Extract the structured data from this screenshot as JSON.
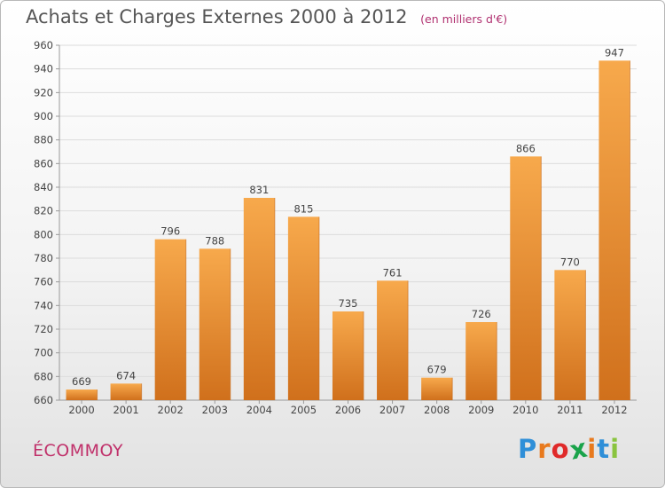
{
  "chart_data": {
    "type": "bar",
    "title": "Achats et Charges Externes 2000 à 2012",
    "subtitle": "(en milliers d'€)",
    "xlabel": "",
    "ylabel": "",
    "categories": [
      "2000",
      "2001",
      "2002",
      "2003",
      "2004",
      "2005",
      "2006",
      "2007",
      "2008",
      "2009",
      "2010",
      "2011",
      "2012"
    ],
    "values": [
      669,
      674,
      796,
      788,
      831,
      815,
      735,
      761,
      679,
      726,
      866,
      770,
      947
    ],
    "ylim": [
      660,
      960
    ],
    "yticks": [
      660,
      680,
      700,
      720,
      740,
      760,
      780,
      800,
      820,
      840,
      860,
      880,
      900,
      920,
      940,
      960
    ],
    "grid": true,
    "legend": "none",
    "bar_color_light": "#f7a94c",
    "bar_color_dark": "#d0701c"
  },
  "location": "ÉCOMMOY",
  "logo": {
    "text": "Proxiti",
    "colors": [
      "#2f8fd8",
      "#e87a1e",
      "#e02a2a",
      "#1aa34a",
      "#e87a1e",
      "#2f8fd8",
      "#8ac43f"
    ]
  }
}
